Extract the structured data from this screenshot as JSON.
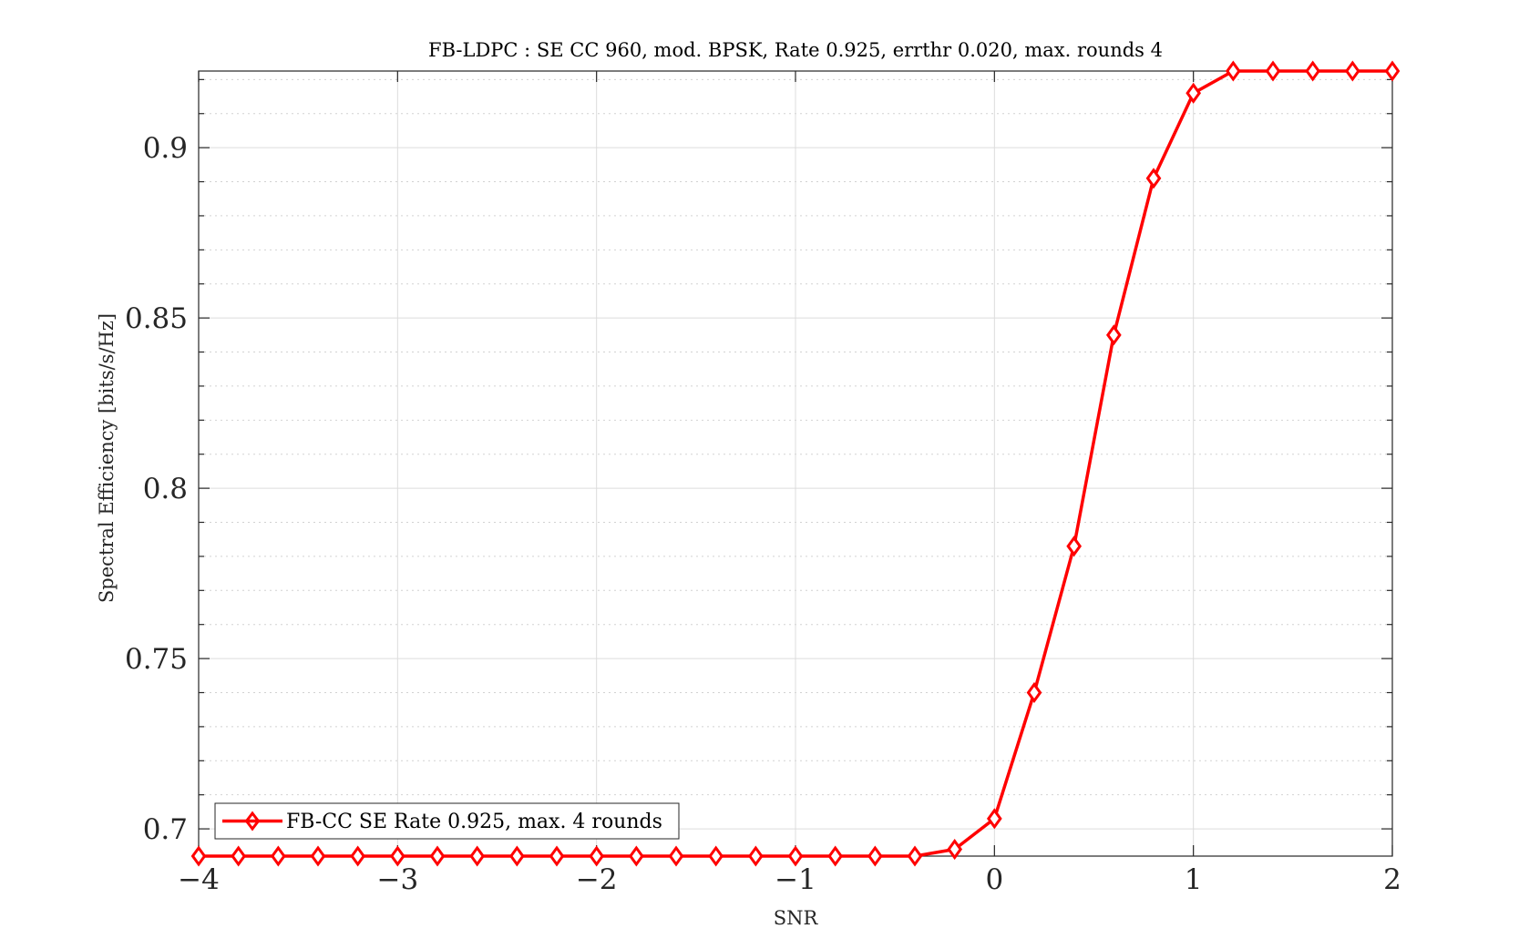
{
  "chart_data": {
    "type": "line",
    "title": "FB-LDPC : SE CC 960, mod. BPSK, Rate 0.925, errthr 0.020, max. rounds 4",
    "xlabel": "SNR",
    "ylabel": "Spectral Efficiency [bits/s/Hz]",
    "xlim": [
      -4,
      2
    ],
    "ylim": [
      0.692,
      0.9225
    ],
    "xticks": [
      -4,
      -3,
      -2,
      -1,
      0,
      1,
      2
    ],
    "xtick_labels": [
      "−4",
      "−3",
      "−2",
      "−1",
      "0",
      "1",
      "2"
    ],
    "yticks": [
      0.7,
      0.75,
      0.8,
      0.85,
      0.9
    ],
    "ytick_labels": [
      "0.7",
      "0.75",
      "0.8",
      "0.85",
      "0.9"
    ],
    "y_minor_step": 0.01,
    "grid": true,
    "legend_position": "bottom-left",
    "series": [
      {
        "name": "FB-CC SE Rate 0.925, max. 4 rounds",
        "color": "#ff0000",
        "marker": "diamond",
        "x": [
          -4.0,
          -3.8,
          -3.6,
          -3.4,
          -3.2,
          -3.0,
          -2.8,
          -2.6,
          -2.4,
          -2.2,
          -2.0,
          -1.8,
          -1.6,
          -1.4,
          -1.2,
          -1.0,
          -0.8,
          -0.6,
          -0.4,
          -0.2,
          0.0,
          0.2,
          0.4,
          0.6,
          0.8,
          1.0,
          1.2,
          1.4,
          1.6,
          1.8,
          2.0
        ],
        "y": [
          0.692,
          0.692,
          0.692,
          0.692,
          0.692,
          0.692,
          0.692,
          0.692,
          0.692,
          0.692,
          0.692,
          0.692,
          0.692,
          0.692,
          0.692,
          0.692,
          0.692,
          0.692,
          0.692,
          0.694,
          0.703,
          0.74,
          0.783,
          0.845,
          0.891,
          0.916,
          0.9225,
          0.9225,
          0.9225,
          0.9225,
          0.9225
        ]
      }
    ]
  }
}
